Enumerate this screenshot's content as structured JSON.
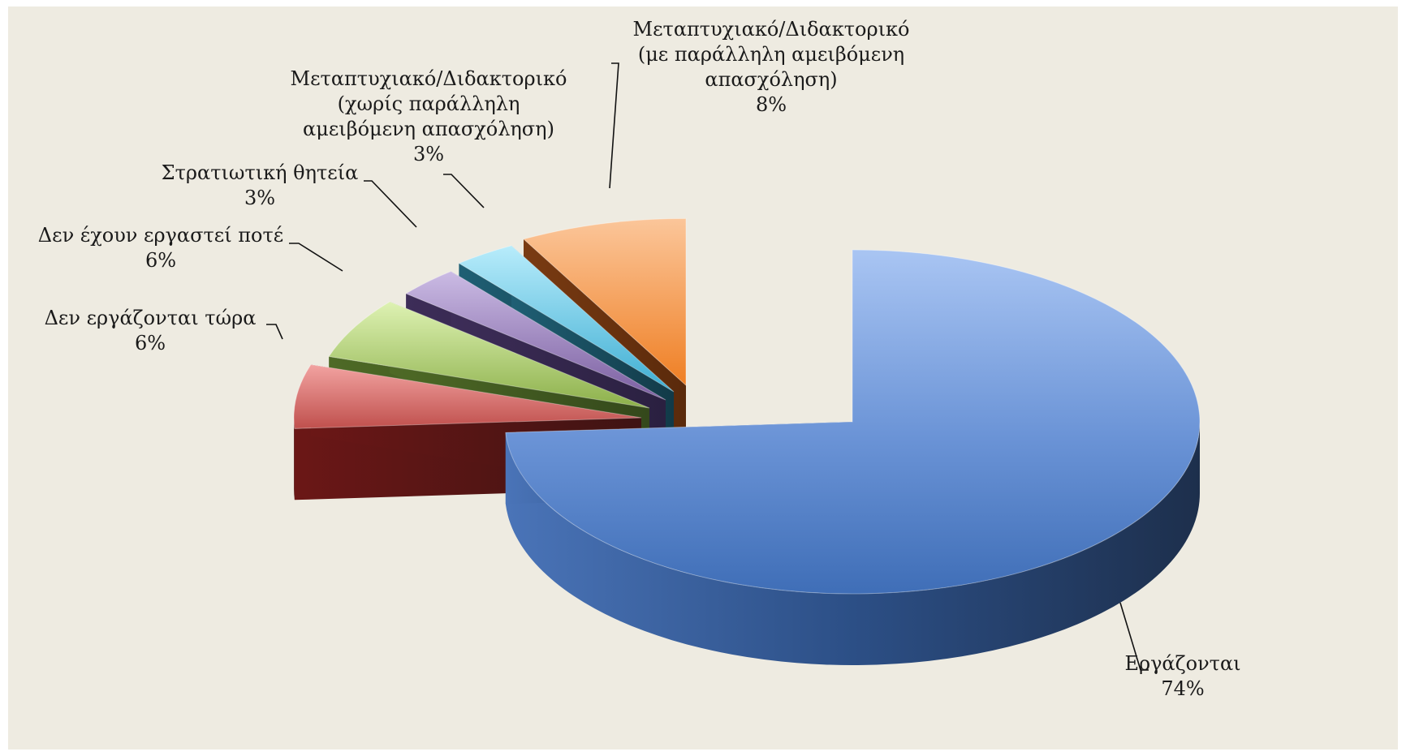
{
  "chart_data": {
    "type": "pie",
    "title": "",
    "series": [
      {
        "slices": [
          {
            "label": [
              "Εργάζονται"
            ],
            "value": 74,
            "display": "74%",
            "color": "#4f81bd"
          },
          {
            "label": [
              "Δεν εργάζονται τώρα"
            ],
            "value": 6,
            "display": "6%",
            "color": "#c0504d"
          },
          {
            "label": [
              "Δεν έχουν εργαστεί ποτέ"
            ],
            "value": 6,
            "display": "6%",
            "color": "#9bbb59"
          },
          {
            "label": [
              "Στρατιωτική θητεία"
            ],
            "value": 3,
            "display": "3%",
            "color": "#8064a2"
          },
          {
            "label": [
              "Μεταπτυχιακό/Διδακτορικό",
              "(χωρίς παράλληλη",
              "αμειβόμενη απασχόληση)"
            ],
            "value": 3,
            "display": "3%",
            "color": "#4bacc6"
          },
          {
            "label": [
              "Μεταπτυχιακό/Διδακτορικό",
              "(με παράλληλη αμειβόμενη",
              "απασχόληση)"
            ],
            "value": 8,
            "display": "8%",
            "color": "#f79646"
          }
        ]
      }
    ],
    "style": "3d-exploded",
    "legend": "none",
    "data_labels": "outside-with-leader-lines"
  }
}
